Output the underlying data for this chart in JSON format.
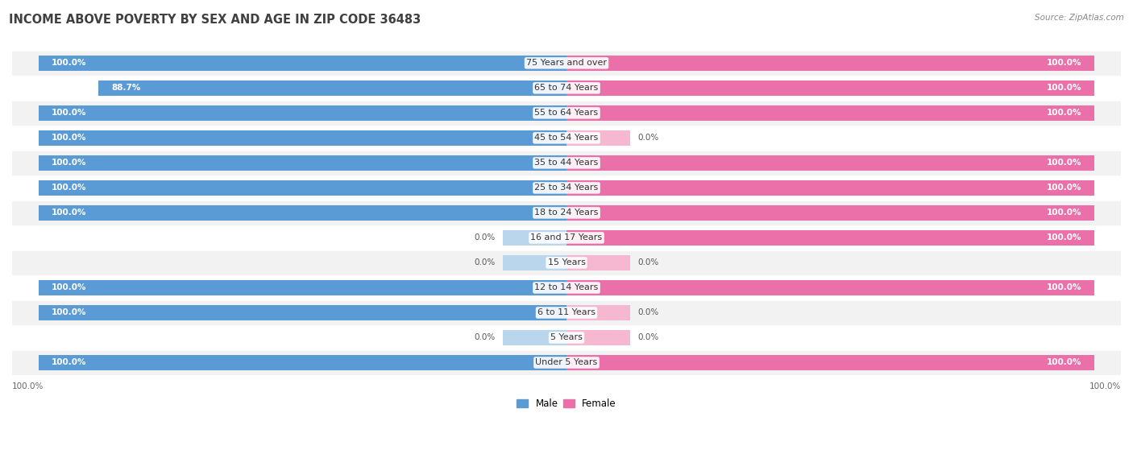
{
  "title": "INCOME ABOVE POVERTY BY SEX AND AGE IN ZIP CODE 36483",
  "source": "Source: ZipAtlas.com",
  "categories": [
    "Under 5 Years",
    "5 Years",
    "6 to 11 Years",
    "12 to 14 Years",
    "15 Years",
    "16 and 17 Years",
    "18 to 24 Years",
    "25 to 34 Years",
    "35 to 44 Years",
    "45 to 54 Years",
    "55 to 64 Years",
    "65 to 74 Years",
    "75 Years and over"
  ],
  "male_values": [
    100.0,
    0.0,
    100.0,
    100.0,
    0.0,
    0.0,
    100.0,
    100.0,
    100.0,
    100.0,
    100.0,
    88.7,
    100.0
  ],
  "female_values": [
    100.0,
    0.0,
    0.0,
    100.0,
    0.0,
    100.0,
    100.0,
    100.0,
    100.0,
    0.0,
    100.0,
    100.0,
    100.0
  ],
  "male_color": "#5b9bd5",
  "female_color": "#eb6fa8",
  "male_color_light": "#bad6ed",
  "female_color_light": "#f5b8d0",
  "row_colors": [
    "#f2f2f2",
    "#ffffff"
  ],
  "background_color": "#ffffff",
  "title_fontsize": 10.5,
  "label_fontsize": 8,
  "value_fontsize": 7.5,
  "source_fontsize": 7.5,
  "legend_fontsize": 8.5,
  "xlim": 100,
  "zero_stub": 12
}
